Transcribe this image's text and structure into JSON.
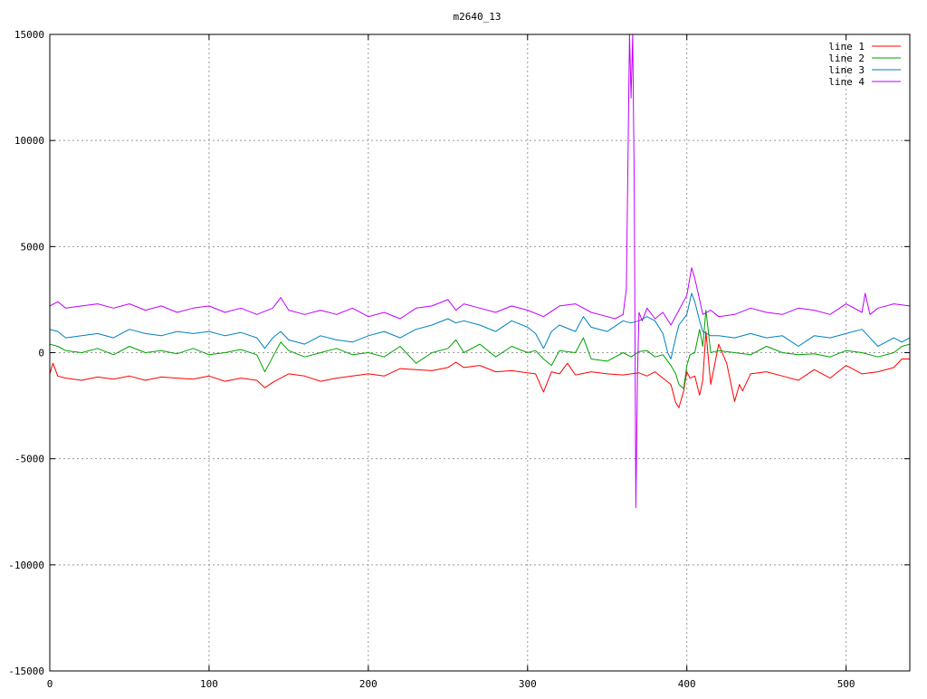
{
  "chart_data": {
    "type": "line",
    "title": "m2640_13",
    "xlabel": "",
    "ylabel": "",
    "xlim": [
      0,
      540
    ],
    "ylim": [
      -15000,
      15000
    ],
    "x_ticks": [
      0,
      100,
      200,
      300,
      400,
      500
    ],
    "y_ticks": [
      -15000,
      -10000,
      -5000,
      0,
      5000,
      10000,
      15000
    ],
    "grid": true,
    "legend_position": "top-right",
    "series": [
      {
        "name": "line 1",
        "color": "#ff0000",
        "x": [
          0,
          2,
          5,
          10,
          20,
          30,
          40,
          50,
          60,
          70,
          80,
          90,
          100,
          110,
          120,
          130,
          135,
          140,
          145,
          150,
          160,
          170,
          180,
          190,
          200,
          210,
          220,
          230,
          240,
          250,
          255,
          260,
          270,
          280,
          290,
          300,
          305,
          310,
          315,
          320,
          325,
          330,
          340,
          350,
          360,
          365,
          370,
          375,
          380,
          385,
          390,
          393,
          395,
          398,
          400,
          402,
          405,
          408,
          410,
          412,
          415,
          420,
          425,
          430,
          433,
          435,
          440,
          450,
          460,
          470,
          480,
          490,
          500,
          510,
          520,
          530,
          535,
          540
        ],
        "y": [
          -1000,
          -500,
          -1100,
          -1200,
          -1300,
          -1150,
          -1250,
          -1100,
          -1300,
          -1150,
          -1200,
          -1250,
          -1100,
          -1350,
          -1200,
          -1300,
          -1650,
          -1400,
          -1200,
          -1000,
          -1100,
          -1350,
          -1200,
          -1100,
          -1000,
          -1100,
          -750,
          -800,
          -850,
          -700,
          -450,
          -700,
          -600,
          -900,
          -850,
          -950,
          -1000,
          -1850,
          -900,
          -1000,
          -500,
          -1050,
          -900,
          -1000,
          -1050,
          -1000,
          -950,
          -1100,
          -900,
          -1200,
          -1500,
          -2350,
          -2600,
          -1800,
          -900,
          -1200,
          -1100,
          -2000,
          -1300,
          1000,
          -1500,
          400,
          -500,
          -2300,
          -1500,
          -1800,
          -1000,
          -900,
          -1100,
          -1300,
          -800,
          -1200,
          -600,
          -1000,
          -900,
          -700,
          -300,
          -300
        ]
      },
      {
        "name": "line 2",
        "color": "#00a000",
        "x": [
          0,
          5,
          10,
          20,
          30,
          40,
          50,
          60,
          70,
          80,
          90,
          100,
          110,
          120,
          130,
          135,
          140,
          145,
          150,
          160,
          170,
          180,
          190,
          200,
          210,
          220,
          230,
          240,
          250,
          255,
          260,
          270,
          280,
          290,
          300,
          305,
          310,
          315,
          320,
          330,
          335,
          340,
          350,
          360,
          365,
          370,
          375,
          380,
          385,
          390,
          393,
          395,
          398,
          400,
          402,
          405,
          408,
          410,
          412,
          415,
          420,
          430,
          440,
          450,
          460,
          470,
          480,
          490,
          500,
          510,
          520,
          530,
          535,
          540
        ],
        "y": [
          400,
          300,
          100,
          0,
          200,
          -100,
          300,
          0,
          100,
          -50,
          200,
          -100,
          0,
          150,
          -100,
          -900,
          -200,
          500,
          100,
          -200,
          0,
          200,
          -100,
          0,
          -200,
          300,
          -500,
          0,
          200,
          600,
          0,
          400,
          -200,
          300,
          0,
          100,
          -300,
          -600,
          100,
          0,
          700,
          -300,
          -400,
          0,
          -200,
          50,
          100,
          -200,
          -100,
          -600,
          -1000,
          -1500,
          -1700,
          -600,
          -100,
          0,
          1100,
          300,
          2000,
          0,
          100,
          0,
          -100,
          300,
          0,
          -100,
          -50,
          -200,
          100,
          0,
          -200,
          0,
          300,
          400
        ]
      },
      {
        "name": "line 3",
        "color": "#0080c0",
        "x": [
          0,
          5,
          10,
          20,
          30,
          40,
          50,
          60,
          70,
          80,
          90,
          100,
          110,
          120,
          130,
          135,
          140,
          145,
          150,
          160,
          170,
          180,
          190,
          200,
          210,
          220,
          230,
          240,
          250,
          255,
          260,
          270,
          280,
          290,
          300,
          305,
          310,
          315,
          320,
          330,
          335,
          340,
          350,
          360,
          365,
          370,
          375,
          380,
          385,
          388,
          390,
          393,
          395,
          400,
          403,
          405,
          408,
          410,
          415,
          420,
          430,
          440,
          450,
          460,
          470,
          480,
          490,
          500,
          510,
          520,
          530,
          535,
          540
        ],
        "y": [
          1100,
          1000,
          700,
          800,
          900,
          700,
          1100,
          900,
          800,
          1000,
          900,
          1000,
          800,
          950,
          700,
          200,
          700,
          1000,
          600,
          400,
          800,
          600,
          500,
          800,
          1000,
          700,
          1100,
          1300,
          1600,
          1400,
          1500,
          1300,
          1000,
          1500,
          1200,
          900,
          200,
          1000,
          1300,
          1000,
          1700,
          1200,
          1000,
          1500,
          1400,
          1500,
          1700,
          1500,
          900,
          0,
          -300,
          700,
          1300,
          1800,
          2800,
          2400,
          1500,
          1000,
          800,
          800,
          700,
          900,
          700,
          800,
          300,
          800,
          700,
          900,
          1100,
          300,
          700,
          500,
          700
        ]
      },
      {
        "name": "line 4",
        "color": "#c000ff",
        "x": [
          0,
          5,
          10,
          20,
          30,
          40,
          50,
          60,
          70,
          80,
          90,
          100,
          110,
          120,
          130,
          140,
          145,
          150,
          160,
          170,
          180,
          190,
          200,
          210,
          220,
          230,
          240,
          250,
          255,
          260,
          270,
          280,
          290,
          300,
          310,
          320,
          330,
          340,
          350,
          355,
          360,
          362,
          364,
          365,
          366,
          367,
          368,
          369,
          370,
          372,
          375,
          380,
          385,
          390,
          395,
          400,
          403,
          405,
          408,
          410,
          415,
          420,
          430,
          440,
          450,
          460,
          470,
          480,
          490,
          500,
          510,
          512,
          515,
          520,
          530,
          540
        ],
        "y": [
          2200,
          2400,
          2100,
          2200,
          2300,
          2100,
          2300,
          2000,
          2200,
          1900,
          2100,
          2200,
          1900,
          2100,
          1800,
          2100,
          2600,
          2000,
          1800,
          2000,
          1800,
          2100,
          1700,
          1900,
          1600,
          2100,
          2200,
          2500,
          2000,
          2300,
          2100,
          1900,
          2200,
          2000,
          1700,
          2200,
          2300,
          1900,
          1700,
          1600,
          1800,
          3000,
          15000,
          12000,
          15000,
          8000,
          -7300,
          -1000,
          1900,
          1500,
          2100,
          1600,
          1900,
          1300,
          2000,
          2700,
          4000,
          3500,
          2500,
          1800,
          2000,
          1700,
          1800,
          2100,
          1900,
          1800,
          2100,
          2000,
          1800,
          2300,
          1900,
          2800,
          1800,
          2100,
          2300,
          2200
        ]
      }
    ]
  }
}
